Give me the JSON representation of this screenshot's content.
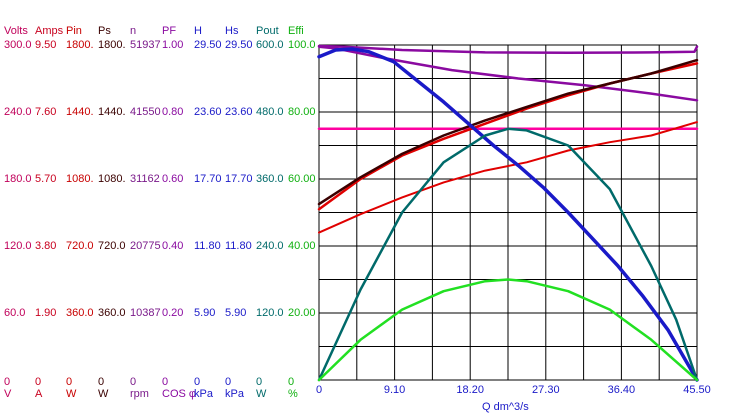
{
  "chart_data": {
    "type": "line",
    "xlabel": "Q  dm^3/s",
    "x_ticks": [
      "0",
      "9.10",
      "18.20",
      "27.30",
      "36.40",
      "45.50"
    ],
    "xlim": [
      0,
      45.5
    ],
    "grid": true,
    "scales": [
      {
        "name": "Volts",
        "unit": "V",
        "color": "#c0005a",
        "ticks": [
          "300.0",
          "240.0",
          "180.0",
          "120.0",
          "60.0",
          "0"
        ]
      },
      {
        "name": "Amps",
        "unit": "A",
        "color": "#c8001e",
        "ticks": [
          "9.50",
          "7.60",
          "5.70",
          "3.80",
          "1.90",
          "0"
        ]
      },
      {
        "name": "Pin",
        "unit": "W",
        "color": "#c80000",
        "ticks": [
          "1800.",
          "1440.",
          "1080.",
          "720.0",
          "360.0",
          "0"
        ]
      },
      {
        "name": "Ps",
        "unit": "W",
        "color": "#3a0000",
        "ticks": [
          "1800.",
          "1440.",
          "1080.",
          "720.0",
          "360.0",
          "0"
        ]
      },
      {
        "name": "n",
        "unit": "rpm",
        "color": "#7a1a8a",
        "ticks": [
          "51937",
          "41550",
          "31162",
          "20775",
          "10387",
          "0"
        ]
      },
      {
        "name": "PF",
        "unit": "COS φ",
        "color": "#8a0aa0",
        "ticks": [
          "1.00",
          "0.80",
          "0.60",
          "0.40",
          "0.20",
          "0"
        ]
      },
      {
        "name": "H",
        "unit": "kPa",
        "color": "#1a1ac8",
        "ticks": [
          "29.50",
          "23.60",
          "17.70",
          "11.80",
          "5.90",
          "0"
        ]
      },
      {
        "name": "Hs",
        "unit": "kPa",
        "color": "#1a1ac8",
        "ticks": [
          "29.50",
          "23.60",
          "17.70",
          "11.80",
          "5.90",
          "0"
        ]
      },
      {
        "name": "Pout",
        "unit": "W",
        "color": "#006a6a",
        "ticks": [
          "600.0",
          "480.0",
          "360.0",
          "240.0",
          "120.0",
          "0"
        ]
      },
      {
        "name": "Effi",
        "unit": "%",
        "color": "#10b010",
        "ticks": [
          "100.0",
          "80.00",
          "60.00",
          "40.00",
          "20.00",
          "0"
        ]
      }
    ],
    "series": [
      {
        "color": "#ff00a0",
        "width": 2.5,
        "points": [
          [
            0,
            0.75
          ],
          [
            10,
            0.75
          ],
          [
            20,
            0.75
          ],
          [
            30,
            0.75
          ],
          [
            40,
            0.75
          ],
          [
            45.5,
            0.75
          ]
        ]
      },
      {
        "color": "#8a0aa0",
        "width": 2.5,
        "points": [
          [
            0,
            0.995
          ],
          [
            2,
            0.99
          ],
          [
            8,
            0.96
          ],
          [
            16,
            0.925
          ],
          [
            24,
            0.9
          ],
          [
            32,
            0.88
          ],
          [
            40,
            0.855
          ],
          [
            45.5,
            0.835
          ]
        ]
      },
      {
        "color": "#8a0aa0",
        "width": 2.5,
        "points": [
          [
            0,
            0.997
          ],
          [
            3,
            0.995
          ],
          [
            10,
            0.985
          ],
          [
            20,
            0.978
          ],
          [
            30,
            0.977
          ],
          [
            40,
            0.978
          ],
          [
            45.2,
            0.98
          ],
          [
            45.5,
            0.995
          ]
        ]
      },
      {
        "color": "#e00000",
        "width": 2,
        "points": [
          [
            0,
            0.44
          ],
          [
            5,
            0.495
          ],
          [
            10,
            0.545
          ],
          [
            15,
            0.59
          ],
          [
            20,
            0.625
          ],
          [
            25,
            0.65
          ],
          [
            30,
            0.685
          ],
          [
            35,
            0.71
          ],
          [
            40,
            0.73
          ],
          [
            45.5,
            0.77
          ]
        ]
      },
      {
        "color": "#e00000",
        "width": 2.5,
        "points": [
          [
            0,
            0.51
          ],
          [
            5,
            0.6
          ],
          [
            10,
            0.67
          ],
          [
            15,
            0.72
          ],
          [
            20,
            0.765
          ],
          [
            25,
            0.81
          ],
          [
            30,
            0.85
          ],
          [
            35,
            0.885
          ],
          [
            40,
            0.915
          ],
          [
            45.5,
            0.945
          ]
        ]
      },
      {
        "color": "#3a0000",
        "width": 2.5,
        "points": [
          [
            0,
            0.525
          ],
          [
            5,
            0.605
          ],
          [
            10,
            0.675
          ],
          [
            15,
            0.73
          ],
          [
            20,
            0.775
          ],
          [
            25,
            0.815
          ],
          [
            30,
            0.855
          ],
          [
            35,
            0.885
          ],
          [
            40,
            0.915
          ],
          [
            45.5,
            0.955
          ]
        ]
      },
      {
        "color": "#1a1ac8",
        "width": 3.5,
        "points": [
          [
            0,
            0.965
          ],
          [
            2,
            0.985
          ],
          [
            4,
            0.988
          ],
          [
            6,
            0.98
          ],
          [
            9,
            0.95
          ],
          [
            12,
            0.89
          ],
          [
            15,
            0.83
          ],
          [
            18,
            0.765
          ],
          [
            21,
            0.7
          ],
          [
            24,
            0.64
          ],
          [
            27,
            0.575
          ],
          [
            30,
            0.5
          ],
          [
            33,
            0.42
          ],
          [
            36,
            0.34
          ],
          [
            39,
            0.25
          ],
          [
            42,
            0.15
          ],
          [
            45.5,
            0.0
          ]
        ]
      },
      {
        "color": "#006a6a",
        "width": 2.5,
        "points": [
          [
            0,
            0
          ],
          [
            5,
            0.27
          ],
          [
            10,
            0.5
          ],
          [
            15,
            0.65
          ],
          [
            20,
            0.73
          ],
          [
            22.75,
            0.75
          ],
          [
            25,
            0.745
          ],
          [
            30,
            0.7
          ],
          [
            35,
            0.57
          ],
          [
            40,
            0.34
          ],
          [
            43,
            0.18
          ],
          [
            45.5,
            0
          ]
        ]
      },
      {
        "color": "#22e022",
        "width": 2.5,
        "points": [
          [
            0,
            0
          ],
          [
            5,
            0.12
          ],
          [
            10,
            0.21
          ],
          [
            15,
            0.265
          ],
          [
            20,
            0.295
          ],
          [
            22.75,
            0.3
          ],
          [
            25,
            0.295
          ],
          [
            30,
            0.265
          ],
          [
            35,
            0.21
          ],
          [
            40,
            0.12
          ],
          [
            45.5,
            0
          ]
        ]
      }
    ]
  }
}
